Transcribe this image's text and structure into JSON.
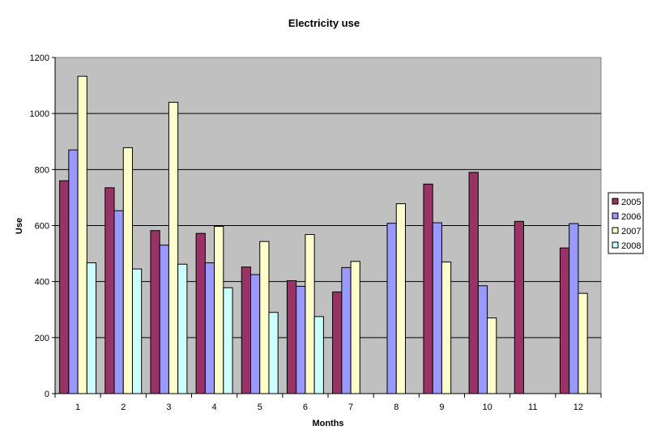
{
  "chart_data": {
    "type": "bar",
    "title": "Electricity use",
    "xlabel": "Months",
    "ylabel": "Use",
    "ylim": [
      0,
      1200
    ],
    "yticks": [
      0,
      200,
      400,
      600,
      800,
      1000,
      1200
    ],
    "grid": true,
    "legend_position": "right",
    "plot_background": "#c0c0c0",
    "categories": [
      "1",
      "2",
      "3",
      "4",
      "5",
      "6",
      "7",
      "8",
      "9",
      "10",
      "11",
      "12"
    ],
    "series": [
      {
        "name": "2005",
        "color": "#993366",
        "values": [
          760,
          735,
          582,
          572,
          452,
          403,
          363,
          null,
          748,
          790,
          615,
          520
        ]
      },
      {
        "name": "2006",
        "color": "#9999ff",
        "values": [
          870,
          653,
          530,
          467,
          425,
          383,
          450,
          608,
          610,
          385,
          null,
          607
        ]
      },
      {
        "name": "2007",
        "color": "#ffffcc",
        "values": [
          1133,
          878,
          1040,
          597,
          543,
          568,
          472,
          678,
          470,
          270,
          null,
          358
        ]
      },
      {
        "name": "2008",
        "color": "#ccffff",
        "values": [
          467,
          445,
          462,
          378,
          290,
          275,
          null,
          null,
          null,
          null,
          null,
          null
        ]
      }
    ]
  }
}
